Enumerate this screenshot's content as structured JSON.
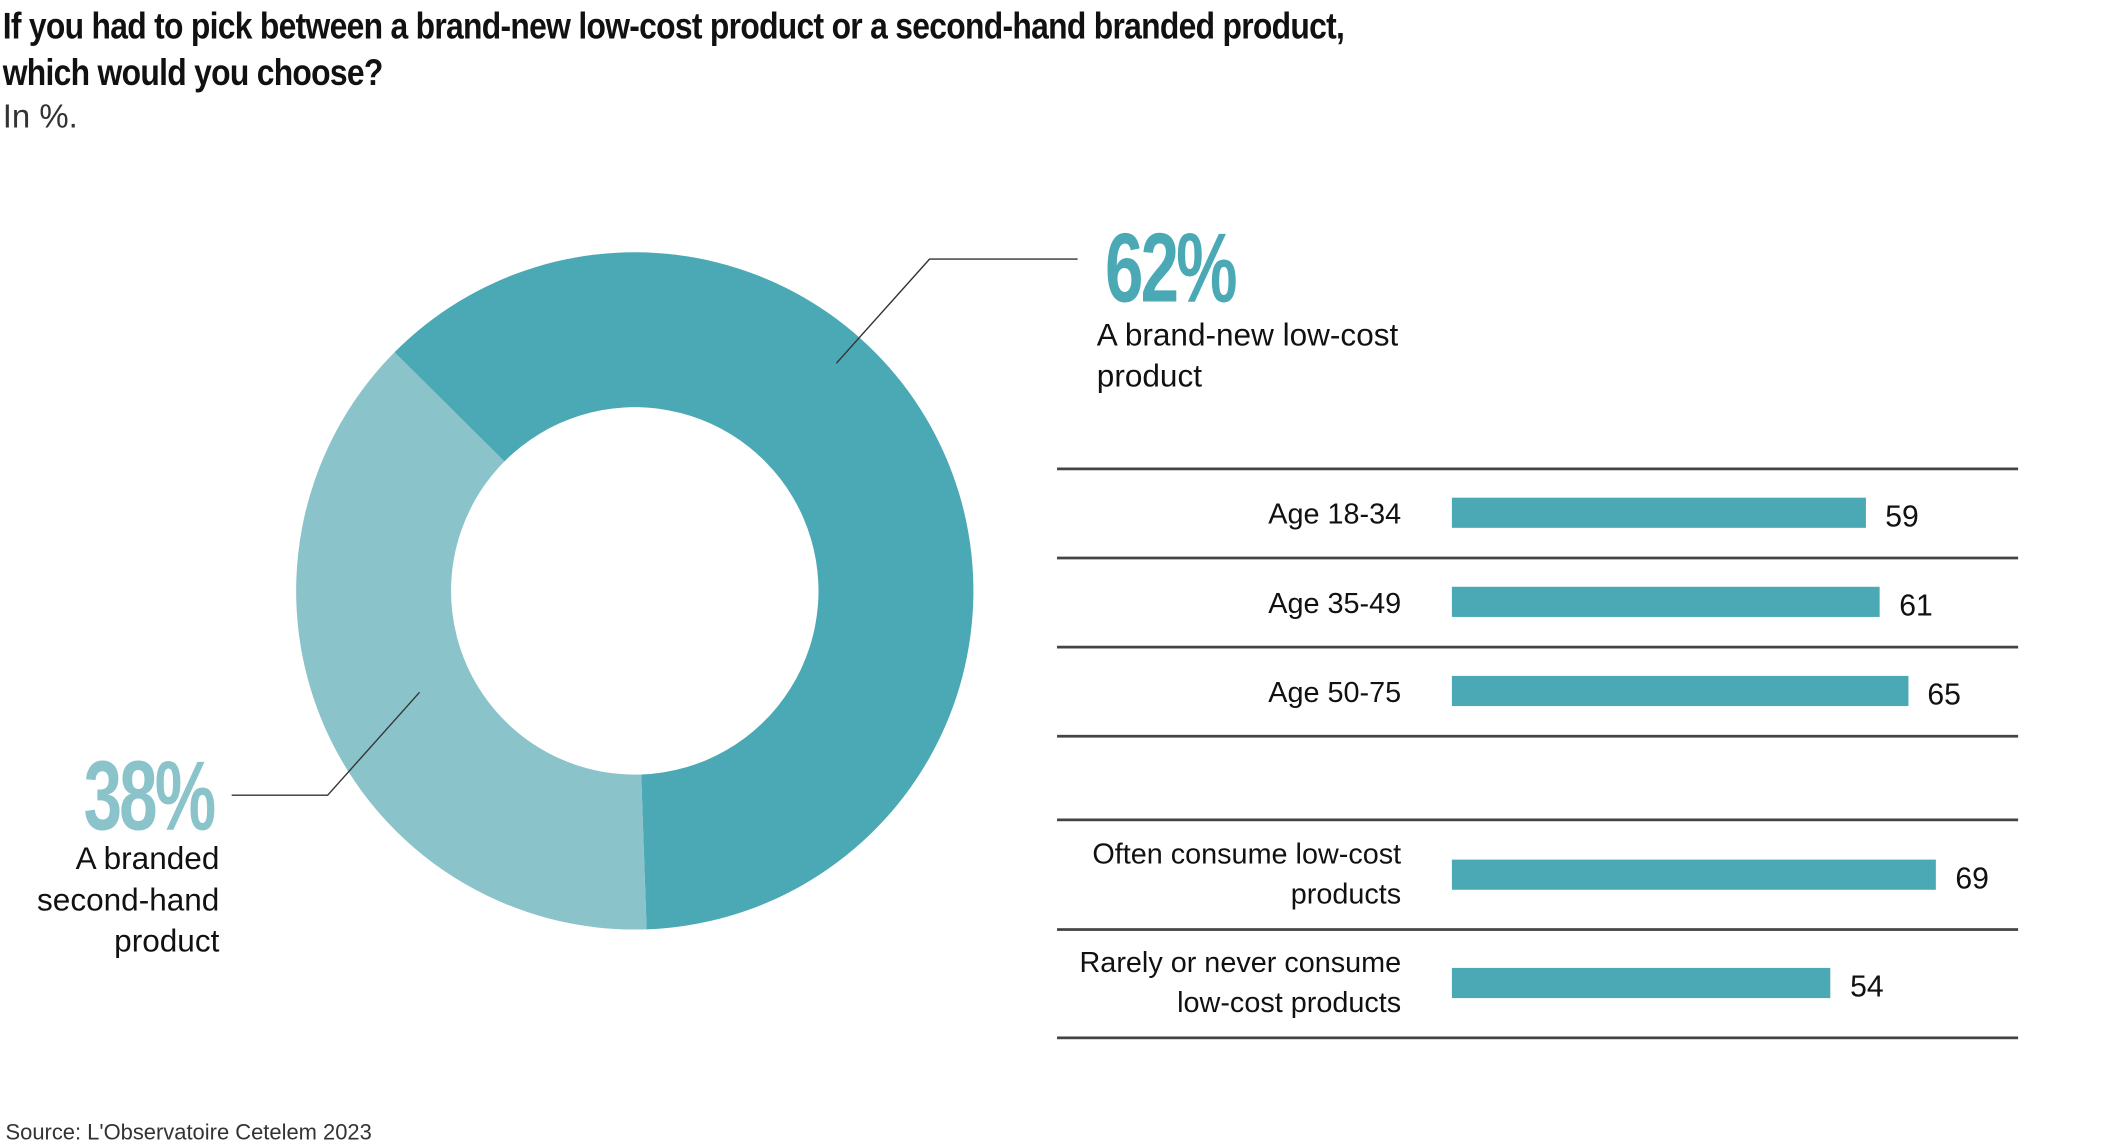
{
  "title_line1": "If you had to pick between a brand-new low-cost product or a second-hand branded product,",
  "title_line2": "which would you choose?",
  "subtitle": "In %.",
  "source": "Source: L'Observatoire Cetelem 2023",
  "colors": {
    "dark": "#4ba9b5",
    "light": "#8bc3ca"
  },
  "chart_data": [
    {
      "type": "pie",
      "title": "If you had to pick between a brand-new low-cost product or a second-hand branded product, which would you choose?",
      "slices": [
        {
          "label_line1": "A brand-new low-cost",
          "label_line2": "product",
          "value": 62,
          "display": "62%"
        },
        {
          "label_line1": "A branded",
          "label_line2": "second-hand",
          "label_line3": "product",
          "value": 38,
          "display": "38%"
        }
      ]
    },
    {
      "type": "bar",
      "orientation": "horizontal",
      "xlim": [
        0,
        100
      ],
      "groups": [
        {
          "rows": [
            {
              "label": "Age 18-34",
              "value": 59
            },
            {
              "label": "Age 35-49",
              "value": 61
            },
            {
              "label": "Age 50-75",
              "value": 65
            }
          ]
        },
        {
          "rows": [
            {
              "label_line1": "Often consume low-cost",
              "label_line2": "products",
              "value": 69
            },
            {
              "label_line1": "Rarely or never consume",
              "label_line2": "low-cost products",
              "value": 54
            }
          ]
        }
      ]
    }
  ]
}
